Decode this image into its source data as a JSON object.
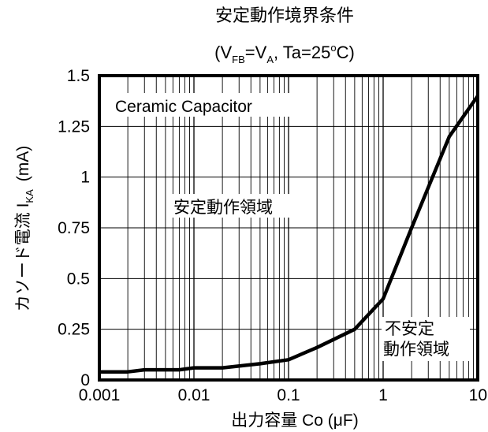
{
  "chart_data": {
    "type": "line",
    "title": "安定動作境界条件",
    "subtitle": {
      "open": "(V",
      "sub1": "FB",
      "mid": "=V",
      "sub2": "A",
      "rest": ", Ta=25",
      "deg": "o",
      "close": "C)"
    },
    "xlabel": "出力容量 Co (μF)",
    "ylabel": {
      "main": "カソード電流 I",
      "sub": "KA",
      "unit": "(mA)"
    },
    "x_scale": "log",
    "xlim": [
      0.001,
      10
    ],
    "ylim": [
      0,
      1.5
    ],
    "x_ticks": [
      0.001,
      0.01,
      0.1,
      1,
      10
    ],
    "x_tick_labels": [
      "0.001",
      "0.01",
      "0.1",
      "1",
      "10"
    ],
    "y_ticks": [
      0,
      0.25,
      0.5,
      0.75,
      1,
      1.25,
      1.5
    ],
    "y_tick_labels": [
      "0",
      "0.25",
      "0.5",
      "0.75",
      "1",
      "1.25",
      "1.5"
    ],
    "grid": true,
    "series": [
      {
        "x": [
          0.001,
          0.002,
          0.003,
          0.005,
          0.007,
          0.01,
          0.02,
          0.05,
          0.1,
          0.2,
          0.5,
          1,
          2,
          5,
          10
        ],
        "y": [
          0.04,
          0.04,
          0.05,
          0.05,
          0.05,
          0.06,
          0.06,
          0.08,
          0.1,
          0.16,
          0.25,
          0.4,
          0.75,
          1.2,
          1.4
        ]
      }
    ],
    "annotations": {
      "capacitor": "Ceramic Capacitor",
      "stable": "安定動作領域",
      "unstable_line1": "不安定",
      "unstable_line2": "動作領域"
    }
  }
}
